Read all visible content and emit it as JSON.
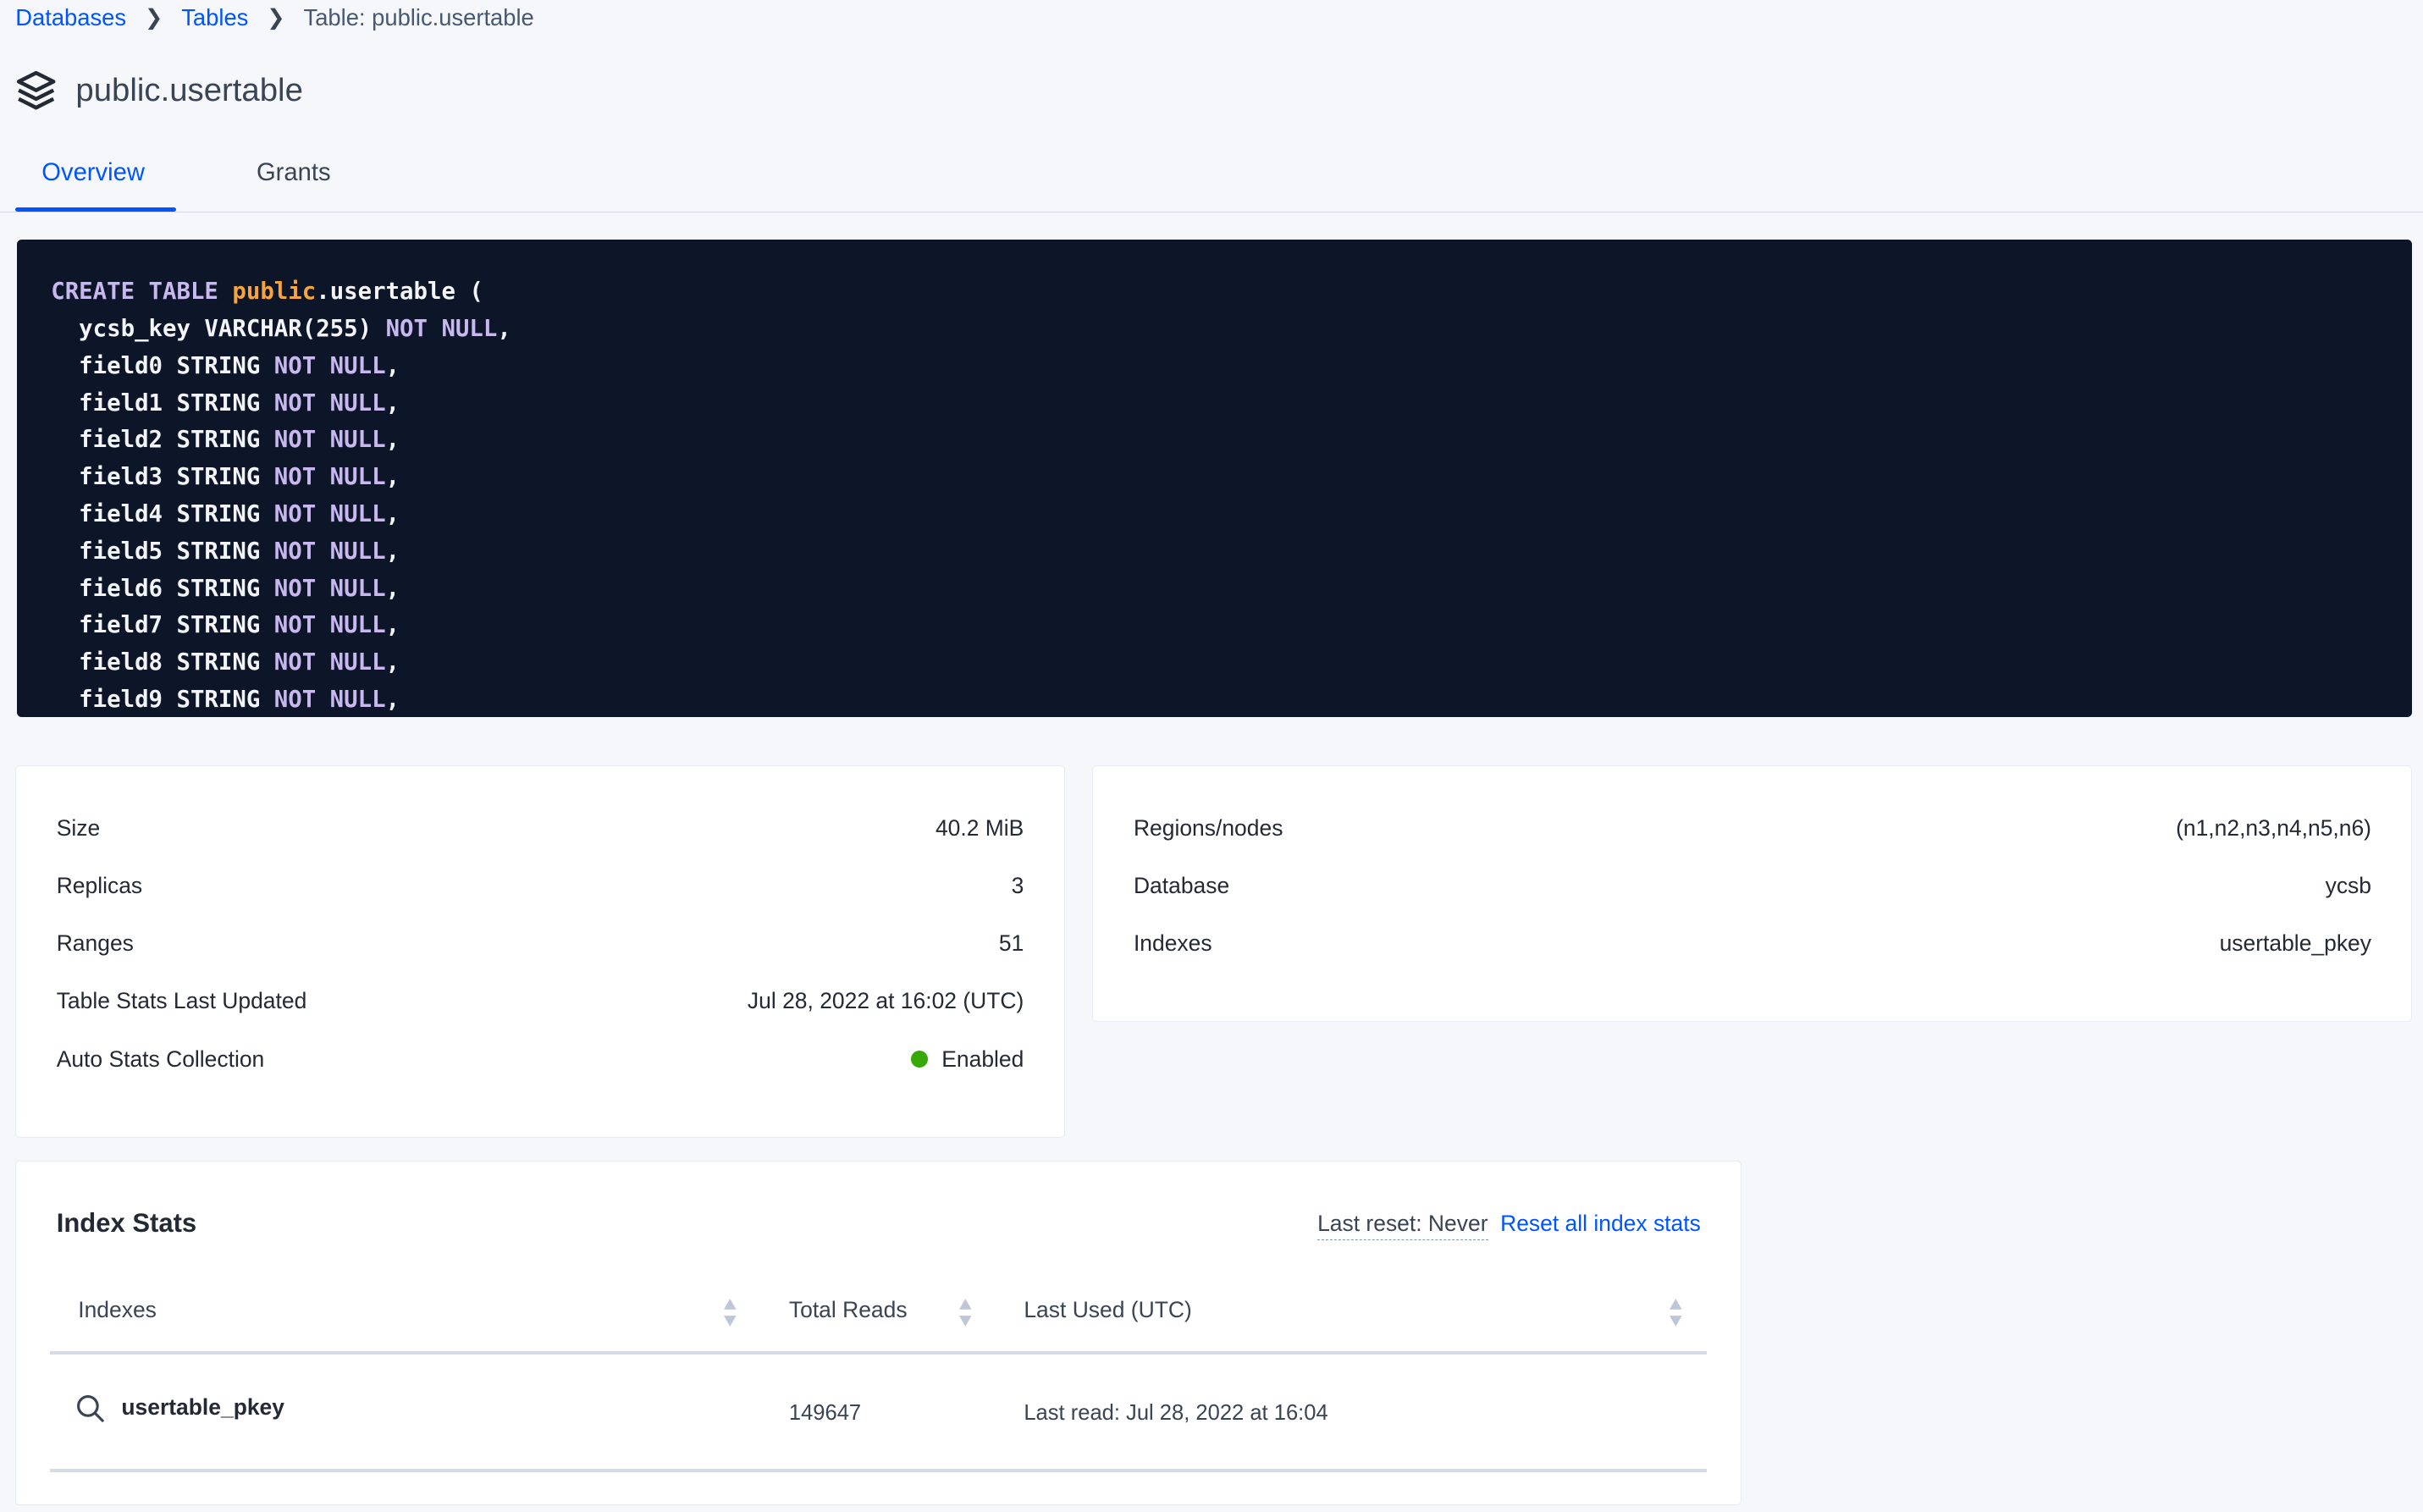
{
  "breadcrumb": {
    "items": [
      "Databases",
      "Tables"
    ],
    "current": "Table: public.usertable"
  },
  "page": {
    "title": "public.usertable",
    "icon": "layers-icon"
  },
  "tabs": [
    {
      "label": "Overview",
      "active": true
    },
    {
      "label": "Grants",
      "active": false
    }
  ],
  "code": {
    "lines": [
      [
        {
          "t": "CREATE TABLE ",
          "c": "kw"
        },
        {
          "t": "public",
          "c": "sch"
        },
        {
          "t": ".usertable (",
          "c": ""
        }
      ],
      [
        {
          "t": "  ycsb_key VARCHAR(255) ",
          "c": ""
        },
        {
          "t": "NOT NULL",
          "c": "kw"
        },
        {
          "t": ",",
          "c": ""
        }
      ],
      [
        {
          "t": "  field0 STRING ",
          "c": ""
        },
        {
          "t": "NOT NULL",
          "c": "kw"
        },
        {
          "t": ",",
          "c": ""
        }
      ],
      [
        {
          "t": "  field1 STRING ",
          "c": ""
        },
        {
          "t": "NOT NULL",
          "c": "kw"
        },
        {
          "t": ",",
          "c": ""
        }
      ],
      [
        {
          "t": "  field2 STRING ",
          "c": ""
        },
        {
          "t": "NOT NULL",
          "c": "kw"
        },
        {
          "t": ",",
          "c": ""
        }
      ],
      [
        {
          "t": "  field3 STRING ",
          "c": ""
        },
        {
          "t": "NOT NULL",
          "c": "kw"
        },
        {
          "t": ",",
          "c": ""
        }
      ],
      [
        {
          "t": "  field4 STRING ",
          "c": ""
        },
        {
          "t": "NOT NULL",
          "c": "kw"
        },
        {
          "t": ",",
          "c": ""
        }
      ],
      [
        {
          "t": "  field5 STRING ",
          "c": ""
        },
        {
          "t": "NOT NULL",
          "c": "kw"
        },
        {
          "t": ",",
          "c": ""
        }
      ],
      [
        {
          "t": "  field6 STRING ",
          "c": ""
        },
        {
          "t": "NOT NULL",
          "c": "kw"
        },
        {
          "t": ",",
          "c": ""
        }
      ],
      [
        {
          "t": "  field7 STRING ",
          "c": ""
        },
        {
          "t": "NOT NULL",
          "c": "kw"
        },
        {
          "t": ",",
          "c": ""
        }
      ],
      [
        {
          "t": "  field8 STRING ",
          "c": ""
        },
        {
          "t": "NOT NULL",
          "c": "kw"
        },
        {
          "t": ",",
          "c": ""
        }
      ],
      [
        {
          "t": "  field9 STRING ",
          "c": ""
        },
        {
          "t": "NOT NULL",
          "c": "kw"
        },
        {
          "t": ",",
          "c": ""
        }
      ]
    ]
  },
  "stats_left": [
    {
      "label": "Size",
      "value": "40.2 MiB"
    },
    {
      "label": "Replicas",
      "value": "3"
    },
    {
      "label": "Ranges",
      "value": "51"
    },
    {
      "label": "Table Stats Last Updated",
      "value": "Jul 28, 2022 at 16:02 (UTC)"
    },
    {
      "label": "Auto Stats Collection",
      "value": "Enabled",
      "status_color": "#37a806"
    }
  ],
  "stats_right": [
    {
      "label": "Regions/nodes",
      "value": "(n1,n2,n3,n4,n5,n6)"
    },
    {
      "label": "Database",
      "value": "ycsb"
    },
    {
      "label": "Indexes",
      "value": "usertable_pkey"
    }
  ],
  "index_stats": {
    "title": "Index Stats",
    "last_reset": "Last reset: Never",
    "reset_link": "Reset all index stats",
    "columns": [
      "Indexes",
      "Total Reads",
      "Last Used (UTC)"
    ],
    "rows": [
      {
        "index": "usertable_pkey",
        "total_reads": "149647",
        "last_used": "Last read: Jul 28, 2022 at 16:04"
      }
    ]
  },
  "colors": {
    "accent": "#0055ff",
    "code_bg": "#0d1629",
    "keyword": "#c9b8f0",
    "schema": "#f5a53b"
  }
}
